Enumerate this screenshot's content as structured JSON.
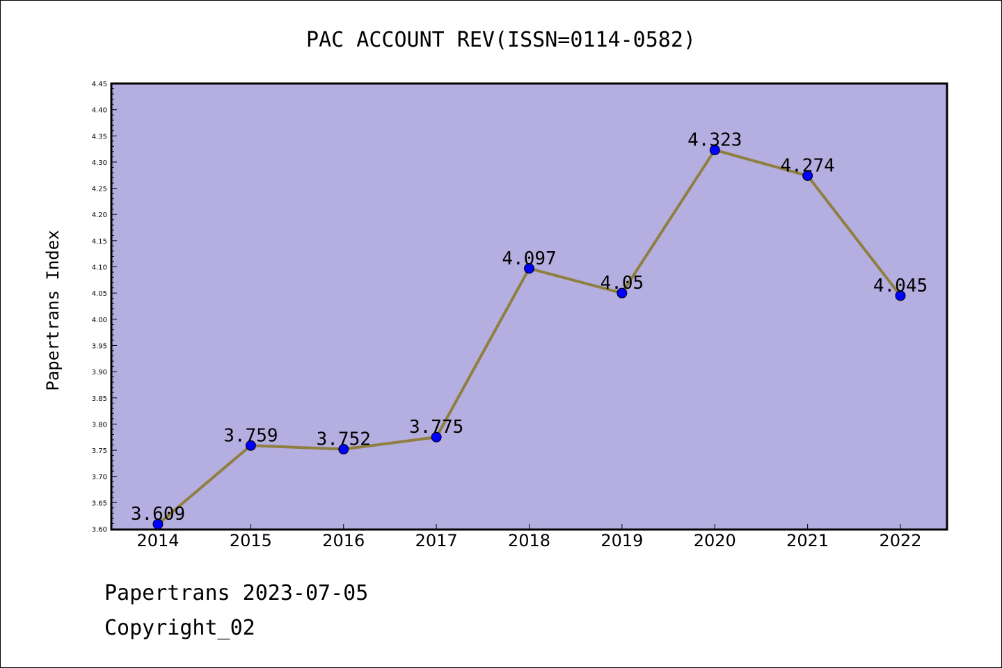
{
  "chart_data": {
    "type": "line",
    "title": "PAC ACCOUNT REV(ISSN=0114-0582)",
    "ylabel": "Papertrans Index",
    "xlabel": "",
    "categories": [
      "2014",
      "2015",
      "2016",
      "2017",
      "2018",
      "2019",
      "2020",
      "2021",
      "2022"
    ],
    "values": [
      3.609,
      3.759,
      3.752,
      3.775,
      4.097,
      4.05,
      4.323,
      4.274,
      4.045
    ],
    "data_labels": [
      "3.609",
      "3.759",
      "3.752",
      "3.775",
      "4.097",
      "4.05",
      "4.323",
      "4.274",
      "4.045"
    ],
    "ylim": [
      3.6,
      4.45
    ],
    "ytick_labels": [
      "3.60",
      "3.65",
      "3.70",
      "3.75",
      "3.80",
      "3.85",
      "3.90",
      "3.95",
      "4.00",
      "4.05",
      "4.10",
      "4.15",
      "4.20",
      "4.25",
      "4.30",
      "4.35",
      "4.40",
      "4.45"
    ],
    "grid": false,
    "colors": {
      "plot_background": "#b5aee0",
      "line": "#8f7f3f",
      "marker": "#0000ff"
    }
  },
  "footer": {
    "line1": "Papertrans 2023-07-05",
    "line2": "Copyright_02"
  }
}
